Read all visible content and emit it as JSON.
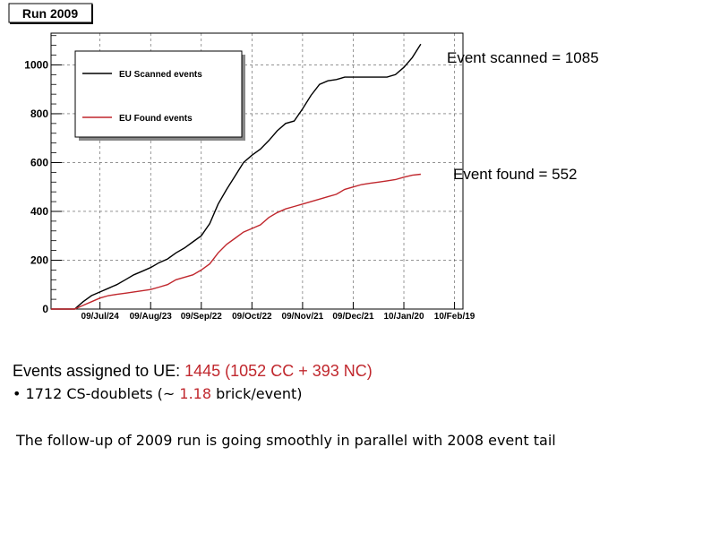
{
  "chart_data": {
    "type": "line",
    "title": "Run 2009",
    "xlabel": "",
    "ylabel": "",
    "x_tick_labels": [
      "09/Jul/24",
      "09/Aug/23",
      "09/Sep/22",
      "09/Oct/22",
      "09/Nov/21",
      "09/Dec/21",
      "10/Jan/20",
      "10/Feb/19"
    ],
    "y_tick_labels": [
      "0",
      "200",
      "400",
      "600",
      "800",
      "1000"
    ],
    "ylim": [
      0,
      1130
    ],
    "xlim": [
      "2009-06-25",
      "2010-02-24"
    ],
    "grid": true,
    "legend_position": "top-left",
    "series": [
      {
        "name": "EU Scanned events",
        "color": "#000000",
        "x": [
          "2009-07-09",
          "2009-07-14",
          "2009-07-19",
          "2009-07-24",
          "2009-07-29",
          "2009-08-03",
          "2009-08-08",
          "2009-08-13",
          "2009-08-18",
          "2009-08-23",
          "2009-08-28",
          "2009-09-02",
          "2009-09-07",
          "2009-09-12",
          "2009-09-17",
          "2009-09-22",
          "2009-09-27",
          "2009-10-02",
          "2009-10-07",
          "2009-10-12",
          "2009-10-17",
          "2009-10-22",
          "2009-10-27",
          "2009-11-01",
          "2009-11-06",
          "2009-11-11",
          "2009-11-16",
          "2009-11-21",
          "2009-11-26",
          "2009-12-01",
          "2009-12-06",
          "2009-12-11",
          "2009-12-16",
          "2009-12-21",
          "2009-12-26",
          "2009-12-31",
          "2010-01-05",
          "2010-01-10",
          "2010-01-15",
          "2010-01-20",
          "2010-01-25",
          "2010-01-30"
        ],
        "y": [
          0,
          30,
          55,
          70,
          85,
          100,
          120,
          140,
          155,
          170,
          190,
          205,
          230,
          250,
          275,
          300,
          350,
          430,
          490,
          545,
          600,
          630,
          655,
          690,
          730,
          760,
          770,
          820,
          875,
          920,
          935,
          940,
          950,
          950,
          950,
          950,
          950,
          950,
          960,
          990,
          1030,
          1085
        ]
      },
      {
        "name": "EU Found events",
        "color": "#c0272d",
        "x": [
          "2009-07-09",
          "2009-07-14",
          "2009-07-19",
          "2009-07-24",
          "2009-07-29",
          "2009-08-03",
          "2009-08-08",
          "2009-08-13",
          "2009-08-18",
          "2009-08-23",
          "2009-08-28",
          "2009-09-02",
          "2009-09-07",
          "2009-09-12",
          "2009-09-17",
          "2009-09-22",
          "2009-09-27",
          "2009-10-02",
          "2009-10-07",
          "2009-10-12",
          "2009-10-17",
          "2009-10-22",
          "2009-10-27",
          "2009-11-01",
          "2009-11-06",
          "2009-11-11",
          "2009-11-16",
          "2009-11-21",
          "2009-11-26",
          "2009-12-01",
          "2009-12-06",
          "2009-12-11",
          "2009-12-16",
          "2009-12-21",
          "2009-12-26",
          "2009-12-31",
          "2010-01-05",
          "2010-01-10",
          "2010-01-15",
          "2010-01-20",
          "2010-01-25",
          "2010-01-30"
        ],
        "y": [
          0,
          15,
          30,
          45,
          55,
          60,
          65,
          70,
          75,
          80,
          90,
          100,
          120,
          130,
          140,
          160,
          185,
          230,
          265,
          290,
          315,
          330,
          345,
          375,
          395,
          410,
          420,
          430,
          440,
          450,
          460,
          470,
          490,
          500,
          510,
          515,
          520,
          525,
          530,
          540,
          548,
          552
        ]
      }
    ],
    "annotations": [
      "Event scanned = 1085",
      "Event found = 552"
    ]
  },
  "notes": {
    "line1_prefix": "Events assigned to UE: ",
    "line1_highlight": "1445 (1052 CC + 393 NC)",
    "line2_prefix": "•  1712 CS-doublets (~ ",
    "line2_highlight": "1.18",
    "line2_suffix": " brick/event)",
    "line3": "The follow-up of 2009 run is going smoothly in parallel with 2008 event tail"
  }
}
